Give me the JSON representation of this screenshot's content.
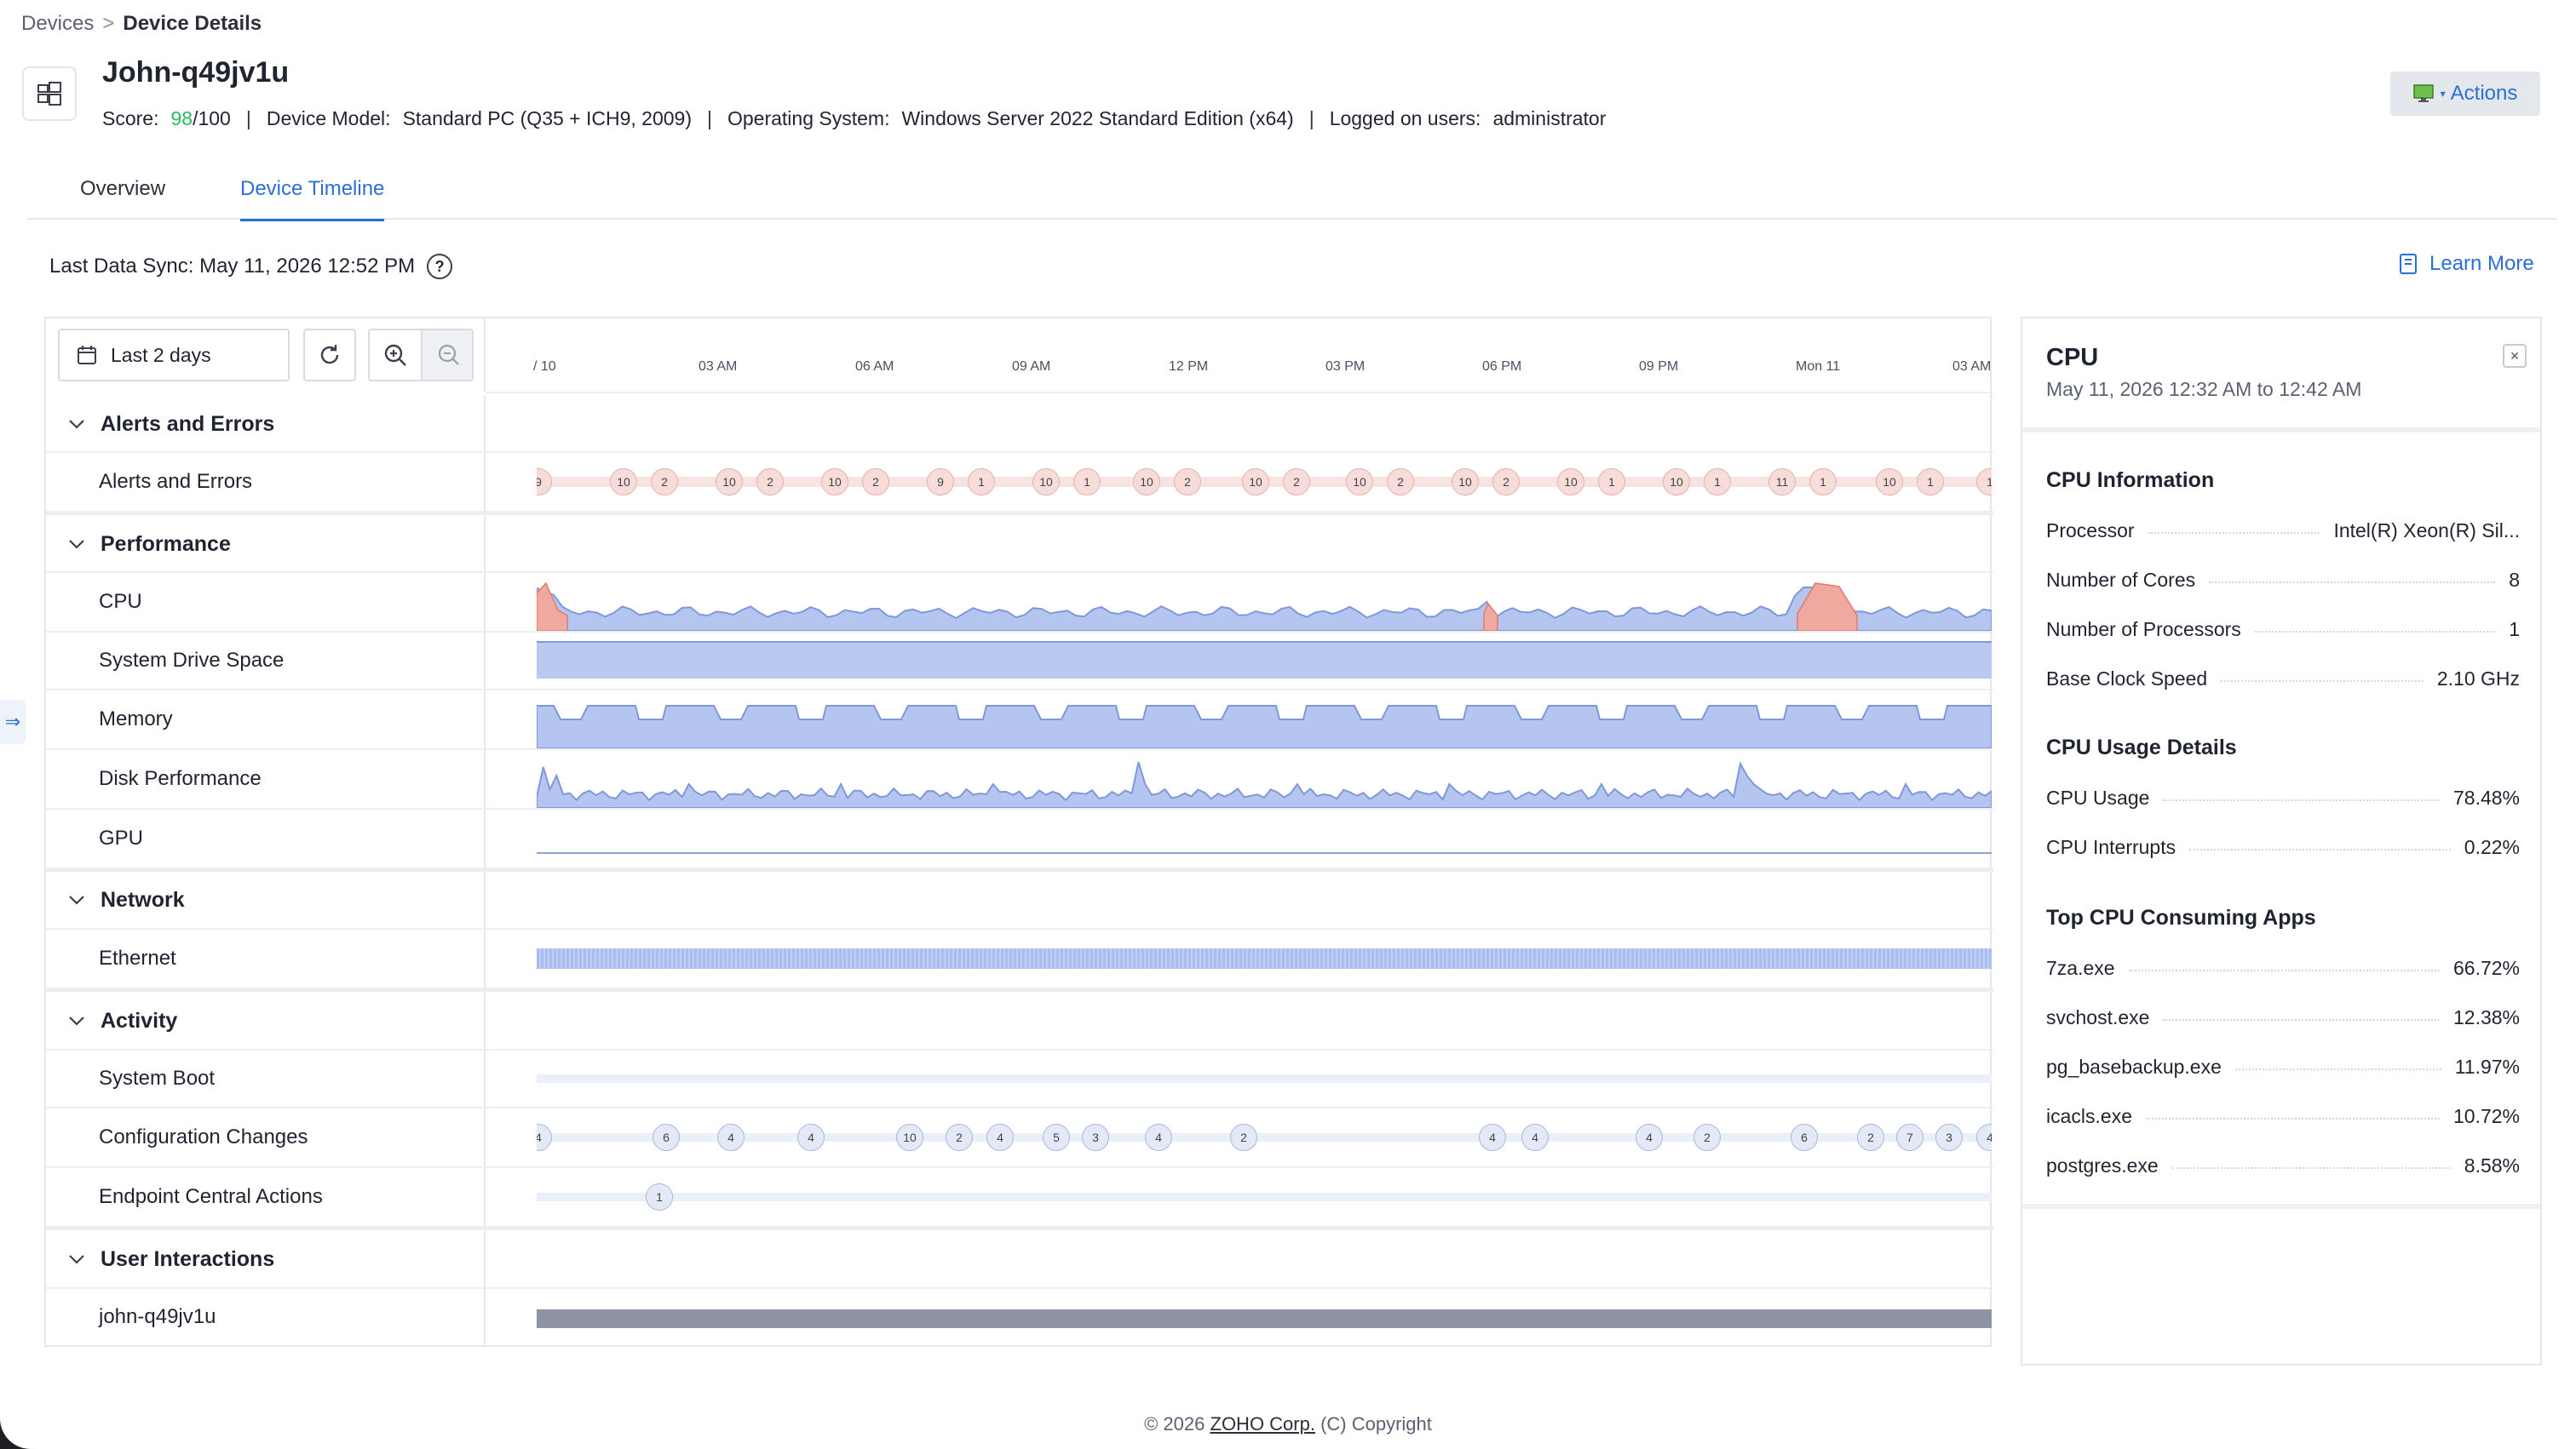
{
  "breadcrumb": {
    "root": "Devices",
    "separator": ">",
    "current": "Device Details"
  },
  "device": {
    "name": "John-q49jv1u",
    "score_label": "Score:",
    "score_value": "98",
    "score_total": "/100",
    "model_label": "Device Model:",
    "model_value": "Standard PC (Q35 + ICH9, 2009)",
    "os_label": "Operating System:",
    "os_value": "Windows Server 2022 Standard Edition (x64)",
    "users_label": "Logged on users:",
    "users_value": "administrator",
    "separator": "|"
  },
  "actions": {
    "label": "Actions"
  },
  "tabs": [
    {
      "label": "Overview"
    },
    {
      "label": "Device Timeline"
    }
  ],
  "sync": {
    "label": "Last Data Sync: May 11, 2026 12:52 PM",
    "help": "?"
  },
  "learn_more": {
    "label": "Learn More"
  },
  "toolbar": {
    "range_label": "Last 2 days"
  },
  "axis_ticks": [
    "/ 10",
    "03 AM",
    "06 AM",
    "09 AM",
    "12 PM",
    "03 PM",
    "06 PM",
    "09 PM",
    "Mon 11",
    "03 AM"
  ],
  "groups": {
    "alerts": {
      "label": "Alerts and Errors",
      "rows": [
        {
          "label": "Alerts and Errors"
        }
      ]
    },
    "performance": {
      "label": "Performance",
      "rows": [
        {
          "label": "CPU"
        },
        {
          "label": "System Drive Space"
        },
        {
          "label": "Memory"
        },
        {
          "label": "Disk Performance"
        },
        {
          "label": "GPU"
        }
      ]
    },
    "network": {
      "label": "Network",
      "rows": [
        {
          "label": "Ethernet"
        }
      ]
    },
    "activity": {
      "label": "Activity",
      "rows": [
        {
          "label": "System Boot"
        },
        {
          "label": "Configuration Changes"
        },
        {
          "label": "Endpoint Central Actions"
        }
      ]
    },
    "user": {
      "label": "User Interactions",
      "rows": [
        {
          "label": "john-q49jv1u"
        }
      ]
    }
  },
  "alert_events": [
    "9",
    "10",
    "2",
    "10",
    "2",
    "10",
    "2",
    "9",
    "1",
    "10",
    "1",
    "10",
    "2",
    "10",
    "2",
    "10",
    "2",
    "10",
    "2",
    "10",
    "1",
    "10",
    "1",
    "11",
    "1",
    "10",
    "1",
    "1"
  ],
  "config_events": [
    "4",
    "6",
    "4",
    "4",
    "10",
    "2",
    "4",
    "5",
    "3",
    "4",
    "2",
    "4",
    "4",
    "4",
    "2",
    "6",
    "2",
    "7",
    "3",
    "4"
  ],
  "endpoint_events": [
    "1"
  ],
  "detail": {
    "title": "CPU",
    "subtitle": "May 11, 2026 12:32 AM to 12:42 AM",
    "close": "×",
    "info_title": "CPU Information",
    "info": [
      {
        "k": "Processor",
        "v": "Intel(R) Xeon(R) Sil..."
      },
      {
        "k": "Number of Cores",
        "v": "8"
      },
      {
        "k": "Number of Processors",
        "v": "1"
      },
      {
        "k": "Base Clock Speed",
        "v": "2.10 GHz"
      }
    ],
    "usage_title": "CPU Usage Details",
    "usage": [
      {
        "k": "CPU Usage",
        "v": "78.48%"
      },
      {
        "k": "CPU Interrupts",
        "v": "0.22%"
      }
    ],
    "apps_title": "Top CPU Consuming Apps",
    "apps": [
      {
        "k": "7za.exe",
        "v": "66.72%"
      },
      {
        "k": "svchost.exe",
        "v": "12.38%"
      },
      {
        "k": "pg_basebackup.exe",
        "v": "11.97%"
      },
      {
        "k": "icacls.exe",
        "v": "10.72%"
      },
      {
        "k": "postgres.exe",
        "v": "8.58%"
      }
    ]
  },
  "footer": {
    "prefix": "© 2026 ",
    "link": "ZOHO Corp.",
    "suffix": " (C) Copyright"
  },
  "colors": {
    "accent": "#2b6fd6",
    "score_green": "#2dba5e",
    "series_fill": "#b4c6f0",
    "series_stroke": "#7f98d8",
    "alert_fill": "#f0a99f"
  }
}
